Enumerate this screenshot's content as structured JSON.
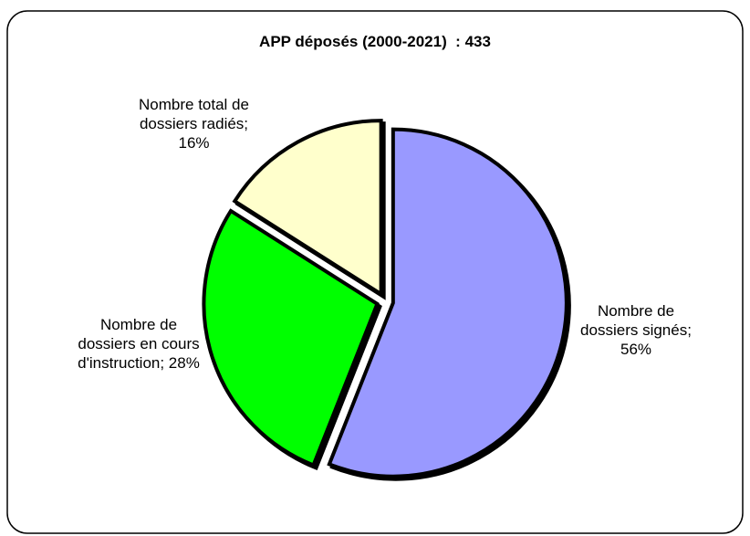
{
  "chart_data": {
    "type": "pie",
    "title": "APP déposés (2000-2021)  : 433",
    "values": [
      56,
      28,
      16
    ],
    "value_labels": [
      "Nombre de dossiers signés; 56%",
      "Nombre de dossiers en cours d'instruction; 28%",
      "Nombre total de dossiers radiés; 16%"
    ],
    "colors": [
      "#9999ff",
      "#00ff00",
      "#ffffcc"
    ]
  }
}
